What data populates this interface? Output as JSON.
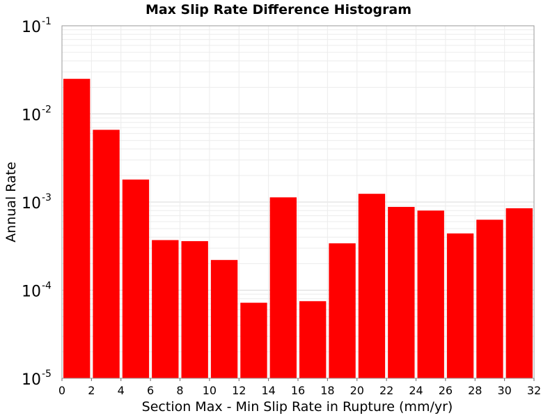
{
  "chart_data": {
    "type": "bar",
    "title": "Max Slip Rate Difference Histogram",
    "xlabel": "Section Max - Min Slip Rate in Rupture (mm/yr)",
    "ylabel": "Annual Rate",
    "xlim": [
      0,
      32
    ],
    "ylim": [
      1e-05,
      0.1
    ],
    "yscale": "log",
    "grid": true,
    "bar_color": "#ff0000",
    "x_ticks": [
      "0",
      "2",
      "4",
      "6",
      "8",
      "10",
      "12",
      "14",
      "16",
      "18",
      "20",
      "22",
      "24",
      "26",
      "28",
      "30",
      "32"
    ],
    "y_ticks": [
      {
        "base": "10",
        "exp": "-1"
      },
      {
        "base": "10",
        "exp": "-2"
      },
      {
        "base": "10",
        "exp": "-3"
      },
      {
        "base": "10",
        "exp": "-4"
      },
      {
        "base": "10",
        "exp": "-5"
      }
    ],
    "bins": [
      {
        "x0": 0,
        "x1": 2,
        "value": 0.025
      },
      {
        "x0": 2,
        "x1": 4,
        "value": 0.0066
      },
      {
        "x0": 4,
        "x1": 6,
        "value": 0.0018
      },
      {
        "x0": 6,
        "x1": 8,
        "value": 0.00037
      },
      {
        "x0": 8,
        "x1": 10,
        "value": 0.00036
      },
      {
        "x0": 10,
        "x1": 12,
        "value": 0.00022
      },
      {
        "x0": 12,
        "x1": 14,
        "value": 7.2e-05
      },
      {
        "x0": 14,
        "x1": 16,
        "value": 0.00113
      },
      {
        "x0": 16,
        "x1": 18,
        "value": 7.5e-05
      },
      {
        "x0": 18,
        "x1": 20,
        "value": 0.00034
      },
      {
        "x0": 20,
        "x1": 22,
        "value": 0.00124
      },
      {
        "x0": 22,
        "x1": 24,
        "value": 0.00088
      },
      {
        "x0": 24,
        "x1": 26,
        "value": 0.0008
      },
      {
        "x0": 26,
        "x1": 28,
        "value": 0.00044
      },
      {
        "x0": 28,
        "x1": 30,
        "value": 0.00063
      },
      {
        "x0": 30,
        "x1": 32,
        "value": 0.00085
      }
    ]
  }
}
